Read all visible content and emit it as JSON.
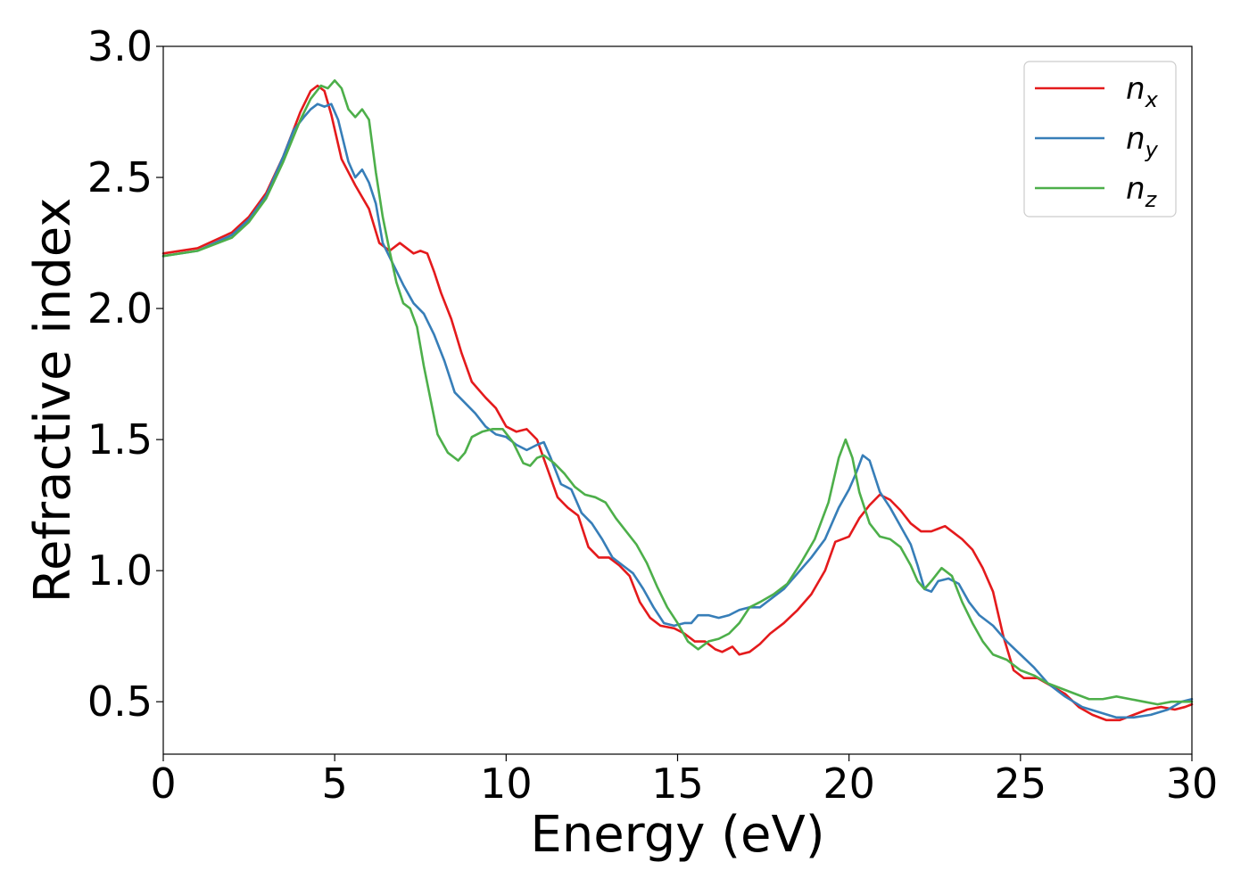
{
  "chart_data": {
    "type": "line",
    "title": "",
    "xlabel": "Energy (eV)",
    "ylabel": "Refractive index",
    "xlim": [
      0,
      30
    ],
    "ylim": [
      0.3,
      3.0
    ],
    "xticks": [
      {
        "value": 0,
        "label": "0"
      },
      {
        "value": 5,
        "label": "5"
      },
      {
        "value": 10,
        "label": "10"
      },
      {
        "value": 15,
        "label": "15"
      },
      {
        "value": 20,
        "label": "20"
      },
      {
        "value": 25,
        "label": "25"
      },
      {
        "value": 30,
        "label": "30"
      }
    ],
    "yticks": [
      {
        "value": 0.5,
        "label": "0.5"
      },
      {
        "value": 1.0,
        "label": "1.0"
      },
      {
        "value": 1.5,
        "label": "1.5"
      },
      {
        "value": 2.0,
        "label": "2.0"
      },
      {
        "value": 2.5,
        "label": "2.5"
      },
      {
        "value": 3.0,
        "label": "3.0"
      }
    ],
    "grid": false,
    "legend_position": "top-right",
    "series": [
      {
        "name": "n_x",
        "legend_base": "n",
        "legend_sub": "x",
        "color": "#e41a1c",
        "x": [
          0,
          1,
          2,
          2.5,
          3,
          3.5,
          4,
          4.3,
          4.5,
          4.7,
          4.9,
          5.2,
          5.6,
          6,
          6.3,
          6.6,
          6.9,
          7.1,
          7.3,
          7.5,
          7.7,
          7.9,
          8.1,
          8.4,
          8.7,
          9.0,
          9.4,
          9.7,
          10.0,
          10.3,
          10.6,
          10.9,
          11.2,
          11.5,
          11.8,
          12.1,
          12.4,
          12.7,
          13.0,
          13.3,
          13.6,
          13.9,
          14.2,
          14.5,
          14.9,
          15.2,
          15.5,
          15.8,
          16.1,
          16.3,
          16.6,
          16.8,
          17.1,
          17.4,
          17.7,
          18.1,
          18.5,
          18.9,
          19.3,
          19.6,
          20.0,
          20.3,
          20.6,
          20.9,
          21.2,
          21.5,
          21.8,
          22.1,
          22.4,
          22.6,
          22.8,
          23.0,
          23.3,
          23.6,
          23.9,
          24.2,
          24.5,
          24.8,
          25.1,
          25.5,
          25.9,
          26.3,
          26.7,
          27.1,
          27.5,
          27.9,
          28.3,
          28.7,
          29.1,
          29.5,
          29.8,
          30.0
        ],
        "values": [
          2.21,
          2.23,
          2.29,
          2.35,
          2.44,
          2.58,
          2.75,
          2.83,
          2.85,
          2.83,
          2.74,
          2.57,
          2.47,
          2.38,
          2.25,
          2.22,
          2.25,
          2.23,
          2.21,
          2.22,
          2.21,
          2.14,
          2.06,
          1.96,
          1.83,
          1.72,
          1.66,
          1.62,
          1.55,
          1.53,
          1.54,
          1.5,
          1.39,
          1.28,
          1.24,
          1.21,
          1.09,
          1.05,
          1.05,
          1.02,
          0.98,
          0.88,
          0.82,
          0.79,
          0.78,
          0.76,
          0.73,
          0.73,
          0.7,
          0.69,
          0.71,
          0.68,
          0.69,
          0.72,
          0.76,
          0.8,
          0.85,
          0.91,
          1.0,
          1.11,
          1.13,
          1.2,
          1.25,
          1.29,
          1.27,
          1.23,
          1.18,
          1.15,
          1.15,
          1.16,
          1.17,
          1.15,
          1.12,
          1.08,
          1.01,
          0.92,
          0.75,
          0.62,
          0.59,
          0.59,
          0.56,
          0.53,
          0.48,
          0.45,
          0.43,
          0.43,
          0.45,
          0.47,
          0.48,
          0.47,
          0.48,
          0.49
        ]
      },
      {
        "name": "n_y",
        "legend_base": "n",
        "legend_sub": "y",
        "color": "#377eb8",
        "x": [
          0,
          1,
          2,
          2.5,
          3,
          3.5,
          3.8,
          4.1,
          4.3,
          4.5,
          4.7,
          4.9,
          5.1,
          5.4,
          5.6,
          5.8,
          6.0,
          6.2,
          6.4,
          6.7,
          7.0,
          7.3,
          7.6,
          7.9,
          8.2,
          8.5,
          8.8,
          9.1,
          9.4,
          9.7,
          10.0,
          10.3,
          10.6,
          10.9,
          11.1,
          11.3,
          11.6,
          11.9,
          12.2,
          12.5,
          12.8,
          13.1,
          13.4,
          13.7,
          14.0,
          14.3,
          14.6,
          14.9,
          15.2,
          15.4,
          15.6,
          15.9,
          16.2,
          16.5,
          16.8,
          17.1,
          17.4,
          17.7,
          18.1,
          18.5,
          18.9,
          19.3,
          19.7,
          20.0,
          20.2,
          20.4,
          20.6,
          20.9,
          21.2,
          21.5,
          21.8,
          22.0,
          22.2,
          22.4,
          22.6,
          22.9,
          23.2,
          23.5,
          23.8,
          24.2,
          24.6,
          25.0,
          25.4,
          25.8,
          26.3,
          26.8,
          27.3,
          27.8,
          28.3,
          28.8,
          29.3,
          29.7,
          30.0
        ],
        "values": [
          2.2,
          2.22,
          2.28,
          2.34,
          2.43,
          2.58,
          2.68,
          2.73,
          2.76,
          2.78,
          2.77,
          2.78,
          2.72,
          2.56,
          2.5,
          2.53,
          2.48,
          2.4,
          2.25,
          2.17,
          2.09,
          2.02,
          1.98,
          1.9,
          1.8,
          1.68,
          1.64,
          1.6,
          1.55,
          1.52,
          1.51,
          1.48,
          1.46,
          1.48,
          1.49,
          1.43,
          1.33,
          1.31,
          1.22,
          1.18,
          1.12,
          1.05,
          1.02,
          0.99,
          0.93,
          0.86,
          0.8,
          0.79,
          0.8,
          0.8,
          0.83,
          0.83,
          0.82,
          0.83,
          0.85,
          0.86,
          0.86,
          0.89,
          0.93,
          0.99,
          1.05,
          1.12,
          1.24,
          1.31,
          1.37,
          1.44,
          1.42,
          1.3,
          1.24,
          1.17,
          1.1,
          1.02,
          0.93,
          0.92,
          0.96,
          0.97,
          0.95,
          0.88,
          0.83,
          0.79,
          0.73,
          0.68,
          0.63,
          0.57,
          0.52,
          0.48,
          0.46,
          0.44,
          0.44,
          0.45,
          0.47,
          0.5,
          0.51
        ]
      },
      {
        "name": "n_z",
        "legend_base": "n",
        "legend_sub": "z",
        "color": "#4daf4a",
        "x": [
          0,
          1,
          2,
          2.5,
          3,
          3.5,
          4.0,
          4.3,
          4.6,
          4.8,
          5.0,
          5.2,
          5.4,
          5.6,
          5.8,
          6.0,
          6.2,
          6.4,
          6.6,
          6.8,
          7.0,
          7.2,
          7.4,
          7.6,
          7.8,
          8.0,
          8.3,
          8.6,
          8.8,
          9.0,
          9.3,
          9.6,
          9.9,
          10.2,
          10.5,
          10.7,
          10.9,
          11.1,
          11.4,
          11.7,
          12.0,
          12.3,
          12.6,
          12.9,
          13.2,
          13.5,
          13.8,
          14.1,
          14.4,
          14.7,
          15.0,
          15.3,
          15.6,
          15.9,
          16.2,
          16.5,
          16.8,
          17.1,
          17.4,
          17.8,
          18.2,
          18.6,
          19.0,
          19.4,
          19.7,
          19.9,
          20.1,
          20.3,
          20.6,
          20.9,
          21.2,
          21.5,
          21.8,
          22.0,
          22.2,
          22.4,
          22.7,
          23.0,
          23.3,
          23.6,
          23.9,
          24.2,
          24.6,
          25.0,
          25.4,
          25.8,
          26.2,
          26.6,
          27.0,
          27.4,
          27.8,
          28.2,
          28.6,
          29.0,
          29.4,
          29.7,
          30.0
        ],
        "values": [
          2.2,
          2.22,
          2.27,
          2.33,
          2.42,
          2.56,
          2.72,
          2.8,
          2.85,
          2.84,
          2.87,
          2.84,
          2.76,
          2.73,
          2.76,
          2.72,
          2.52,
          2.35,
          2.22,
          2.1,
          2.02,
          2.0,
          1.93,
          1.78,
          1.65,
          1.52,
          1.45,
          1.42,
          1.45,
          1.51,
          1.53,
          1.54,
          1.54,
          1.49,
          1.41,
          1.4,
          1.43,
          1.44,
          1.41,
          1.37,
          1.32,
          1.29,
          1.28,
          1.26,
          1.2,
          1.15,
          1.1,
          1.03,
          0.94,
          0.86,
          0.8,
          0.73,
          0.7,
          0.73,
          0.74,
          0.76,
          0.8,
          0.86,
          0.88,
          0.91,
          0.95,
          1.03,
          1.12,
          1.26,
          1.43,
          1.5,
          1.43,
          1.3,
          1.18,
          1.13,
          1.12,
          1.09,
          1.02,
          0.96,
          0.93,
          0.96,
          1.01,
          0.98,
          0.88,
          0.8,
          0.73,
          0.68,
          0.66,
          0.62,
          0.6,
          0.57,
          0.55,
          0.53,
          0.51,
          0.51,
          0.52,
          0.51,
          0.5,
          0.49,
          0.5,
          0.5,
          0.5
        ]
      }
    ]
  }
}
